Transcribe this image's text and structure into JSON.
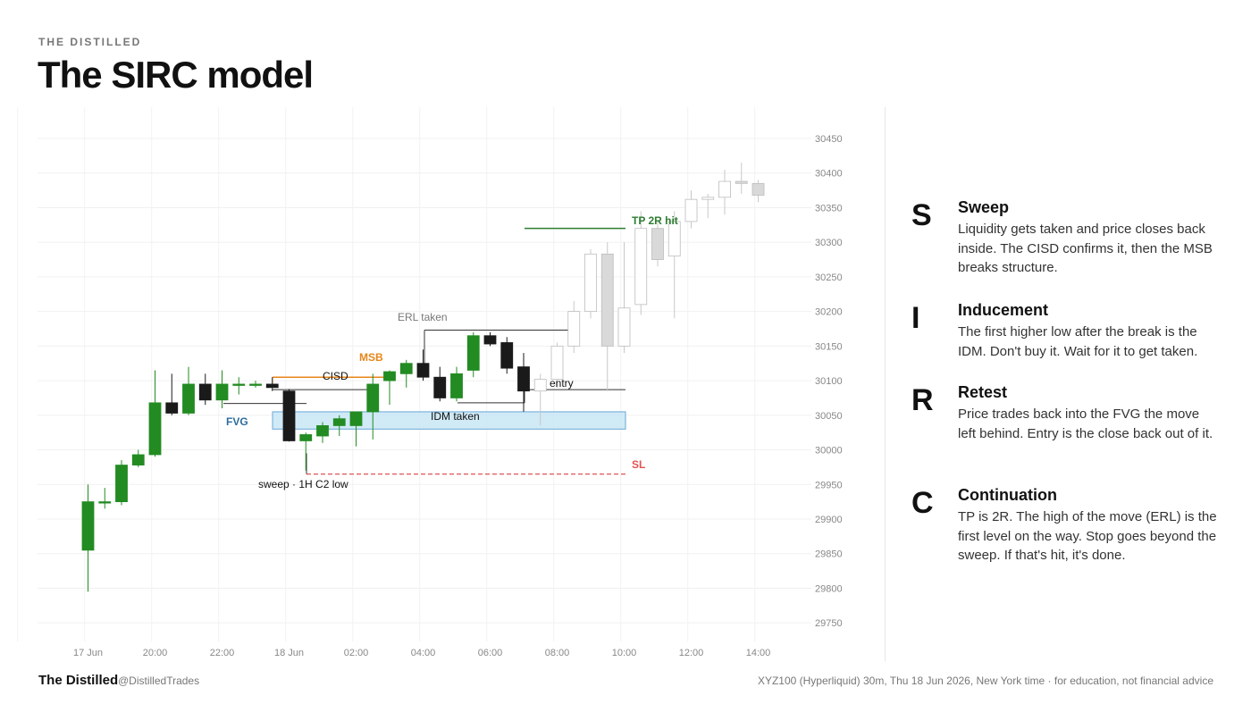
{
  "header": {
    "brand": "THE DISTILLED",
    "title": "The SIRC model"
  },
  "legend": [
    {
      "letter": "S",
      "heading": "Sweep",
      "body": "Liquidity gets taken and price closes back inside. The CISD confirms it, then the MSB breaks structure."
    },
    {
      "letter": "I",
      "heading": "Inducement",
      "body": "The first higher low after the break is the IDM. Don't buy it. Wait for it to get taken."
    },
    {
      "letter": "R",
      "heading": "Retest",
      "body": "Price trades back into the FVG the move left behind. Entry is the close back out of it."
    },
    {
      "letter": "C",
      "heading": "Continuation",
      "body": "TP is 2R. The high of the move (ERL) is the first level on the way. Stop goes beyond the sweep. If that's hit, it's done."
    }
  ],
  "footer": {
    "brand": "The Distilled",
    "handle": "@DistilledTrades",
    "note": "XYZ100 (Hyperliquid) 30m, Thu 18 Jun 2026, New York time · for education, not financial advice"
  },
  "chart_data": {
    "type": "candlestick",
    "timeframe": "30m",
    "ylim": [
      29720,
      30480
    ],
    "y_ticks": [
      29750,
      29800,
      29850,
      29900,
      29950,
      30000,
      30050,
      30100,
      30150,
      30200,
      30250,
      30300,
      30350,
      30400,
      30450
    ],
    "x_ticks": [
      "17 Jun",
      "20:00",
      "22:00",
      "18 Jun",
      "02:00",
      "04:00",
      "06:00",
      "08:00",
      "10:00",
      "12:00",
      "14:00"
    ],
    "grid": true,
    "colors": {
      "up": "#228b22",
      "down": "#1a1a1a",
      "future": "#d9d9d9",
      "fvg": "#cce8f6",
      "fvg_edge": "#5a9fd4",
      "sl": "#e05555",
      "tp": "#2e7d32",
      "msb": "#e8861a",
      "fvg_label": "#2c6e9e"
    },
    "candles": [
      {
        "o": 29855,
        "h": 29950,
        "l": 29795,
        "c": 29925
      },
      {
        "o": 29925,
        "h": 29945,
        "l": 29915,
        "c": 29925
      },
      {
        "o": 29925,
        "h": 29985,
        "l": 29920,
        "c": 29978
      },
      {
        "o": 29978,
        "h": 30000,
        "l": 29975,
        "c": 29993
      },
      {
        "o": 29993,
        "h": 30115,
        "l": 29990,
        "c": 30068
      },
      {
        "o": 30068,
        "h": 30110,
        "l": 30050,
        "c": 30053
      },
      {
        "o": 30053,
        "h": 30120,
        "l": 30050,
        "c": 30095
      },
      {
        "o": 30095,
        "h": 30110,
        "l": 30065,
        "c": 30072
      },
      {
        "o": 30072,
        "h": 30115,
        "l": 30060,
        "c": 30095
      },
      {
        "o": 30095,
        "h": 30105,
        "l": 30080,
        "c": 30095
      },
      {
        "o": 30095,
        "h": 30100,
        "l": 30090,
        "c": 30095
      },
      {
        "o": 30095,
        "h": 30105,
        "l": 30085,
        "c": 30090
      },
      {
        "o": 30085,
        "h": 30088,
        "l": 30012,
        "c": 30013
      },
      {
        "o": 30013,
        "h": 30025,
        "l": 29970,
        "c": 30022
      },
      {
        "o": 30020,
        "h": 30040,
        "l": 30010,
        "c": 30035
      },
      {
        "o": 30035,
        "h": 30050,
        "l": 30020,
        "c": 30045
      },
      {
        "o": 30035,
        "h": 30055,
        "l": 30005,
        "c": 30055
      },
      {
        "o": 30055,
        "h": 30110,
        "l": 30015,
        "c": 30095
      },
      {
        "o": 30100,
        "h": 30115,
        "l": 30065,
        "c": 30113
      },
      {
        "o": 30110,
        "h": 30130,
        "l": 30090,
        "c": 30125
      },
      {
        "o": 30125,
        "h": 30145,
        "l": 30100,
        "c": 30105
      },
      {
        "o": 30105,
        "h": 30120,
        "l": 30070,
        "c": 30075
      },
      {
        "o": 30075,
        "h": 30120,
        "l": 30070,
        "c": 30110
      },
      {
        "o": 30115,
        "h": 30170,
        "l": 30105,
        "c": 30165
      },
      {
        "o": 30165,
        "h": 30170,
        "l": 30150,
        "c": 30153
      },
      {
        "o": 30155,
        "h": 30163,
        "l": 30110,
        "c": 30118
      },
      {
        "o": 30120,
        "h": 30140,
        "l": 30055,
        "c": 30085
      },
      {
        "o": 30085,
        "h": 30110,
        "l": 30035,
        "c": 30102,
        "future": true
      },
      {
        "o": 30102,
        "h": 30155,
        "l": 30090,
        "c": 30150,
        "future": true
      },
      {
        "o": 30150,
        "h": 30215,
        "l": 30140,
        "c": 30200,
        "future": true
      },
      {
        "o": 30200,
        "h": 30290,
        "l": 30190,
        "c": 30283,
        "future": true
      },
      {
        "o": 30283,
        "h": 30300,
        "l": 30085,
        "c": 30150,
        "future": true
      },
      {
        "o": 30150,
        "h": 30300,
        "l": 30140,
        "c": 30205,
        "future": true
      },
      {
        "o": 30210,
        "h": 30345,
        "l": 30195,
        "c": 30320,
        "future": true
      },
      {
        "o": 30320,
        "h": 30330,
        "l": 30265,
        "c": 30275,
        "future": true
      },
      {
        "o": 30280,
        "h": 30345,
        "l": 30190,
        "c": 30330,
        "future": true
      },
      {
        "o": 30330,
        "h": 30375,
        "l": 30320,
        "c": 30362,
        "future": true
      },
      {
        "o": 30362,
        "h": 30370,
        "l": 30335,
        "c": 30365,
        "future": true
      },
      {
        "o": 30365,
        "h": 30405,
        "l": 30340,
        "c": 30388,
        "future": true
      },
      {
        "o": 30388,
        "h": 30415,
        "l": 30370,
        "c": 30385,
        "future": true
      },
      {
        "o": 30385,
        "h": 30390,
        "l": 30358,
        "c": 30368,
        "future": true
      }
    ],
    "levels": {
      "fvg": {
        "low": 30030,
        "high": 30055,
        "label": "FVG"
      },
      "sl": {
        "price": 29965,
        "label": "SL"
      },
      "tp": {
        "price": 30320,
        "label": "TP 2R hit"
      },
      "erl": {
        "price": 30173,
        "label": "ERL taken"
      },
      "entry": {
        "price": 30087,
        "label": "entry"
      },
      "cisd": {
        "price": 30105,
        "label": "CISD"
      },
      "msb": {
        "label": "MSB"
      },
      "sweep": {
        "price": 29970,
        "label": "sweep · 1H C2 low"
      },
      "idm": {
        "price": 30068,
        "label": "IDM taken"
      }
    }
  }
}
